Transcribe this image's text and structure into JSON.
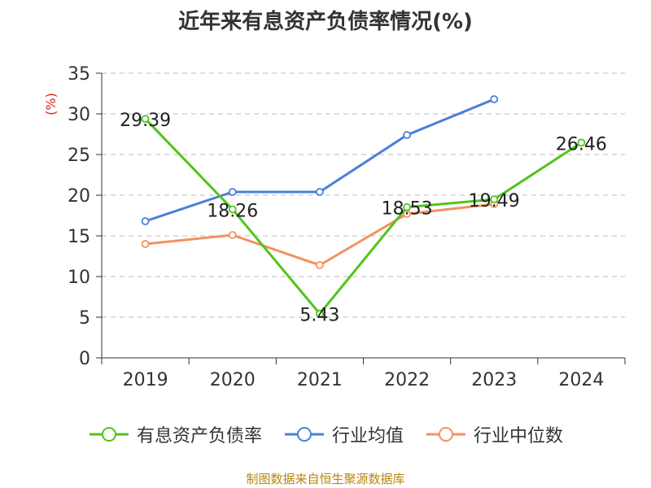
{
  "title": "近年来有息资产负债率情况(%)",
  "source": "制图数据来自恒生聚源数据库",
  "chart_data": {
    "type": "line",
    "title": "近年来有息资产负债率情况(%)",
    "ylabel": "(%)",
    "xlabel": "",
    "ylim": [
      0,
      35
    ],
    "yticks": [
      0,
      5,
      10,
      15,
      20,
      25,
      30,
      35
    ],
    "categories": [
      "2019",
      "2020",
      "2021",
      "2022",
      "2023",
      "2024"
    ],
    "grid": true,
    "legend_position": "bottom",
    "series": [
      {
        "name": "有息资产负债率",
        "color": "#52c41a",
        "show_labels": true,
        "values": [
          29.39,
          18.26,
          5.43,
          18.53,
          19.49,
          26.46
        ]
      },
      {
        "name": "行业均值",
        "color": "#4a7fd9",
        "show_labels": false,
        "values": [
          16.8,
          20.4,
          20.4,
          27.4,
          31.8,
          null
        ]
      },
      {
        "name": "行业中位数",
        "color": "#f4915e",
        "show_labels": false,
        "values": [
          14.0,
          15.1,
          11.4,
          17.7,
          18.9,
          null
        ]
      }
    ]
  }
}
